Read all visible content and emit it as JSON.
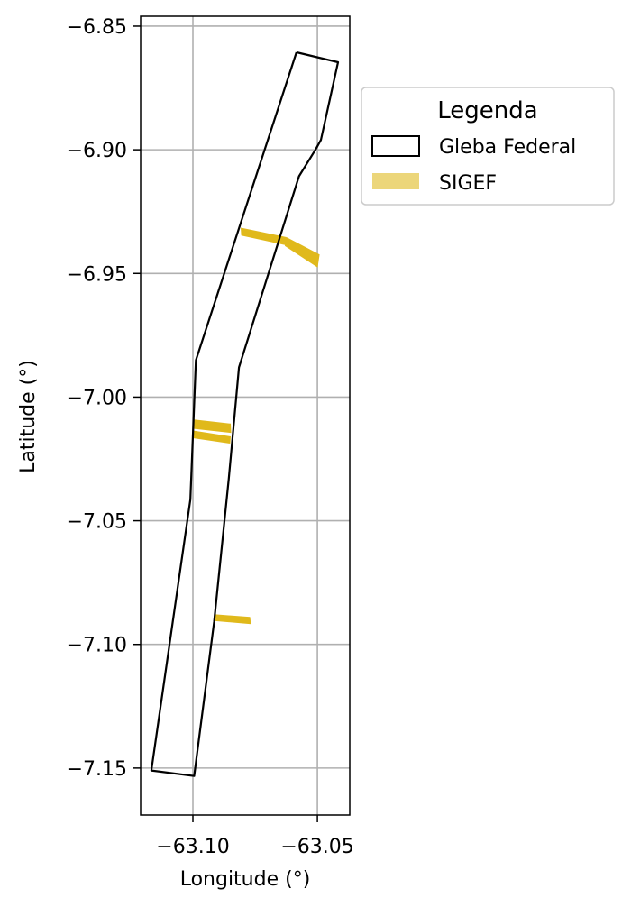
{
  "chart_data": {
    "type": "map",
    "xlabel": "Longitude (°)",
    "ylabel": "Latitude (°)",
    "xlim": [
      -63.121,
      -63.037
    ],
    "ylim": [
      -7.169,
      -6.846
    ],
    "xticks": [
      -63.1,
      -63.05
    ],
    "xtick_labels": [
      "−63.10",
      "−63.05"
    ],
    "yticks": [
      -6.85,
      -6.9,
      -6.95,
      -7.0,
      -7.05,
      -7.1,
      -7.15
    ],
    "ytick_labels": [
      "−6.85",
      "−6.90",
      "−6.95",
      "−7.00",
      "−7.05",
      "−7.10",
      "−7.15"
    ],
    "grid": true,
    "legend": {
      "title": "Legenda",
      "placement": "outside-upper-right",
      "entries": [
        {
          "label": "Gleba Federal",
          "style": "outline",
          "color": "#000000"
        },
        {
          "label": "SIGEF",
          "style": "fill",
          "color": "#e6c84f"
        }
      ]
    },
    "gleba_federal": {
      "name": "Gleba Federal",
      "color": "#000000",
      "coordinates": [
        [
          -63.0584,
          -6.8606
        ],
        [
          -63.0417,
          -6.8646
        ],
        [
          -63.0486,
          -6.896
        ],
        [
          -63.0506,
          -6.8997
        ],
        [
          -63.0574,
          -6.9107
        ],
        [
          -63.0815,
          -6.988
        ],
        [
          -63.0856,
          -7.033
        ],
        [
          -63.0915,
          -7.091
        ],
        [
          -63.0995,
          -7.1532
        ],
        [
          -63.1167,
          -7.151
        ],
        [
          -63.101,
          -7.0414
        ],
        [
          -63.0988,
          -6.9851
        ],
        [
          -63.0584,
          -6.8606
        ]
      ]
    },
    "sigef": {
      "name": "SIGEF",
      "color": "#e0b91b",
      "parcels": [
        [
          [
            -63.0808,
            -6.9315
          ],
          [
            -63.0624,
            -6.9353
          ],
          [
            -63.0622,
            -6.9387
          ],
          [
            -63.0806,
            -6.9347
          ]
        ],
        [
          [
            -63.0624,
            -6.9353
          ],
          [
            -63.0491,
            -6.9423
          ],
          [
            -63.0499,
            -6.9476
          ],
          [
            -63.0631,
            -6.9389
          ]
        ],
        [
          [
            -63.1,
            -7.009
          ],
          [
            -63.0848,
            -7.0107
          ],
          [
            -63.0846,
            -7.0145
          ],
          [
            -63.1,
            -7.0128
          ]
        ],
        [
          [
            -63.1,
            -7.0135
          ],
          [
            -63.0848,
            -7.0159
          ],
          [
            -63.085,
            -7.0188
          ],
          [
            -63.1,
            -7.0166
          ]
        ],
        [
          [
            -63.0915,
            -7.0878
          ],
          [
            -63.077,
            -7.0889
          ],
          [
            -63.0767,
            -7.0918
          ],
          [
            -63.0915,
            -7.0905
          ]
        ]
      ]
    }
  }
}
